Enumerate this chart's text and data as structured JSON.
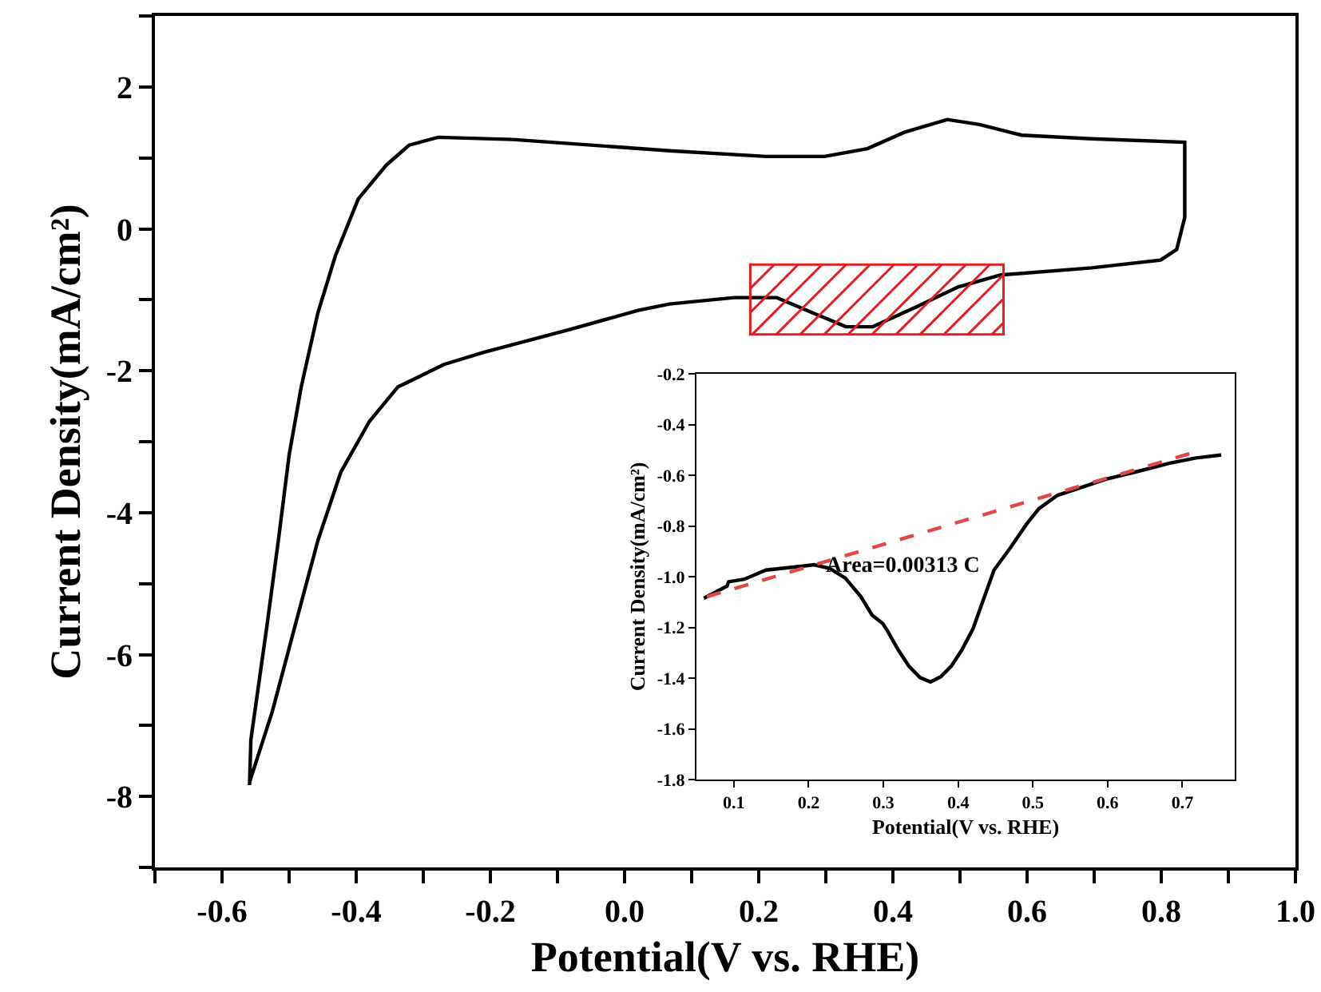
{
  "chart_data": [
    {
      "type": "line",
      "xlabel": "Potential(V vs. RHE)",
      "ylabel": "Current Density(mA/cm²)",
      "xlim": [
        -0.7,
        1.0
      ],
      "ylim": [
        -9,
        3
      ],
      "xticks": [
        {
          "value": -0.7,
          "label": null
        },
        -0.6,
        {
          "value": -0.5,
          "label": null
        },
        -0.4,
        {
          "value": -0.3,
          "label": null
        },
        -0.2,
        {
          "value": -0.1,
          "label": null
        },
        {
          "value": 0,
          "label": "0.0"
        },
        {
          "value": 0.1,
          "label": null
        },
        0.2,
        {
          "value": 0.3,
          "label": null
        },
        0.4,
        {
          "value": 0.5,
          "label": null
        },
        0.6,
        {
          "value": 0.7,
          "label": null
        },
        0.8,
        {
          "value": 0.9,
          "label": null
        },
        {
          "value": 1,
          "label": "1.0"
        }
      ],
      "yticks": [
        {
          "value": -9,
          "label": null
        },
        -8,
        {
          "value": -7,
          "label": null
        },
        -6,
        {
          "value": -5,
          "label": null
        },
        -4,
        {
          "value": -3,
          "label": null
        },
        -2,
        {
          "value": -1,
          "label": null
        },
        0,
        {
          "value": 1,
          "label": null
        },
        2,
        {
          "value": 3,
          "label": null
        }
      ],
      "series": [
        {
          "color": "#000000",
          "x": [
            -0.559,
            -0.557,
            -0.533,
            -0.516,
            -0.5,
            -0.482,
            -0.457,
            -0.431,
            -0.397,
            -0.355,
            -0.321,
            -0.278,
            -0.167,
            0.067,
            0.211,
            0.298,
            0.362,
            0.417,
            0.481,
            0.529,
            0.592,
            0.696,
            0.835,
            0.835,
            0.823,
            0.799,
            0.696,
            0.561,
            0.497,
            0.433,
            0.37,
            0.33,
            0.282,
            0.227,
            0.163,
            0.067,
            0.02,
            -0.082,
            -0.21,
            -0.269,
            -0.338,
            -0.38,
            -0.423,
            -0.457,
            -0.491,
            -0.525,
            -0.559
          ],
          "values": [
            -7.84,
            -7.2,
            -5.59,
            -4.39,
            -3.19,
            -2.23,
            -1.18,
            -0.38,
            0.42,
            0.9,
            1.18,
            1.29,
            1.26,
            1.1,
            1.02,
            1.02,
            1.13,
            1.36,
            1.54,
            1.47,
            1.32,
            1.27,
            1.22,
            0.16,
            -0.29,
            -0.44,
            -0.55,
            -0.65,
            -0.82,
            -1.11,
            -1.38,
            -1.38,
            -1.19,
            -0.97,
            -0.97,
            -1.06,
            -1.15,
            -1.42,
            -1.74,
            -1.91,
            -2.23,
            -2.71,
            -3.43,
            -4.39,
            -5.59,
            -6.8,
            -7.8
          ]
        }
      ]
    },
    {
      "type": "line",
      "xlabel": "Potential(V vs. RHE)",
      "ylabel": "Current Density(mA/cm²)",
      "xlim": [
        0.05,
        0.77
      ],
      "ylim": [
        -1.8,
        -0.2
      ],
      "xticks": [
        0.1,
        0.2,
        0.3,
        0.4,
        0.5,
        0.6,
        0.7
      ],
      "yticks": [
        -1.8,
        -1.6,
        -1.4,
        -1.2,
        {
          "value": -1.0,
          "label": "-1.0"
        },
        -0.8,
        -0.6,
        -0.4,
        -0.2
      ],
      "annotations": [
        "Area=0.00313 C"
      ],
      "series": [
        {
          "color": "#000000",
          "line_style": "solid",
          "x": [
            0.06,
            0.091,
            0.093,
            0.114,
            0.143,
            0.178,
            0.207,
            0.228,
            0.249,
            0.27,
            0.285,
            0.299,
            0.306,
            0.32,
            0.334,
            0.349,
            0.363,
            0.377,
            0.391,
            0.405,
            0.42,
            0.434,
            0.448,
            0.469,
            0.491,
            0.508,
            0.533,
            0.555,
            0.597,
            0.64,
            0.682,
            0.718,
            0.752
          ],
          "values": [
            -1.085,
            -1.037,
            -1.02,
            -1.01,
            -0.974,
            -0.963,
            -0.953,
            -0.967,
            -1.005,
            -1.079,
            -1.152,
            -1.184,
            -1.216,
            -1.289,
            -1.352,
            -1.398,
            -1.415,
            -1.394,
            -1.352,
            -1.289,
            -1.205,
            -1.089,
            -0.974,
            -0.89,
            -0.795,
            -0.732,
            -0.679,
            -0.658,
            -0.616,
            -0.585,
            -0.553,
            -0.532,
            -0.52
          ]
        },
        {
          "color": "#e04848",
          "line_style": "dashed",
          "x": [
            0.064,
            0.714
          ],
          "values": [
            -1.079,
            -0.511
          ]
        }
      ]
    }
  ]
}
